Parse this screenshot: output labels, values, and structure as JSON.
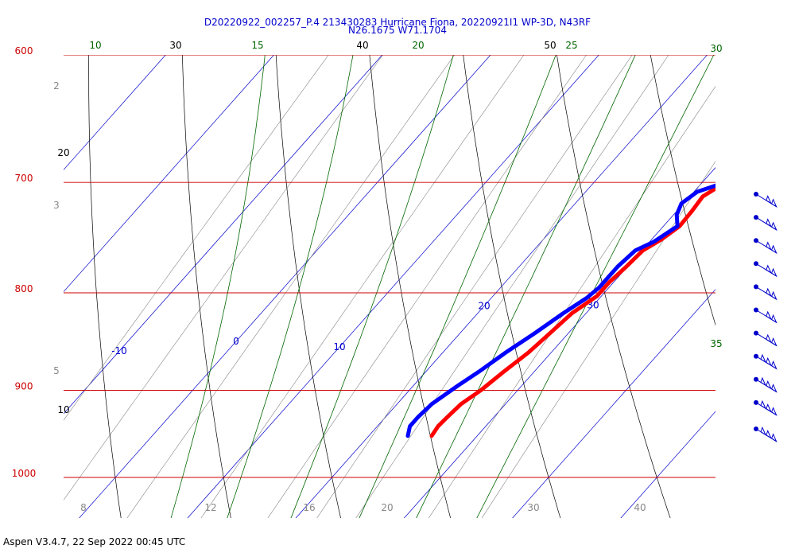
{
  "title_line1": "D20220922_002257_P.4 213430283 Hurricane Fiona, 20220921I1 WP-3D, N43RF",
  "title_line2": "N26.1675 W71.1704",
  "footer": "Aspen V3.4.7, 22 Sep 2022  00:45 UTC",
  "colors": {
    "isobar": "#cc0000",
    "dry_adiabat": "#000000",
    "moist_adiabat": "#006600",
    "isotherm": "#0000cc",
    "mixing_ratio": "#888888",
    "temperature": "#ff0000",
    "dewpoint": "#0000ff",
    "wind": "#0000cc"
  },
  "chart_data": {
    "type": "line",
    "chart_kind": "skew-T log-P sounding",
    "pressure_axis": {
      "label_values": [
        "600",
        "700",
        "800",
        "900",
        "1000"
      ],
      "range_hPa": [
        600,
        1025
      ],
      "scale": "log"
    },
    "isotherm_labels": [
      "-10",
      "0",
      "10",
      "20",
      "30"
    ],
    "dry_adiabat_labels": [
      "10",
      "20",
      "30",
      "40",
      "50"
    ],
    "moist_adiabat_labels": [
      "10",
      "15",
      "20",
      "25",
      "30",
      "35"
    ],
    "mixing_ratio_labels": [
      "2",
      "3",
      "5",
      "8",
      "12",
      "16",
      "20",
      "30",
      "40"
    ],
    "series": [
      {
        "key": "temperature",
        "points_T_C_vs_P_hPa": [
          [
            951,
            25.8
          ],
          [
            940,
            25.6
          ],
          [
            930,
            25.7
          ],
          [
            915,
            25.9
          ],
          [
            900,
            26.6
          ],
          [
            880,
            27.2
          ],
          [
            860,
            27.9
          ],
          [
            840,
            28.3
          ],
          [
            820,
            28.7
          ],
          [
            803,
            29.6
          ],
          [
            790,
            29.6
          ],
          [
            775,
            29.9
          ],
          [
            760,
            30.1
          ],
          [
            750,
            30.9
          ],
          [
            738,
            31.5
          ],
          [
            725,
            31.4
          ],
          [
            712,
            31.2
          ],
          [
            703,
            31.9
          ]
        ]
      },
      {
        "key": "dewpoint",
        "points_T_C_vs_P_hPa": [
          [
            951,
            23.6
          ],
          [
            940,
            23.0
          ],
          [
            930,
            23.0
          ],
          [
            915,
            23.2
          ],
          [
            895,
            24.1
          ],
          [
            880,
            24.9
          ],
          [
            860,
            25.8
          ],
          [
            840,
            26.9
          ],
          [
            820,
            27.9
          ],
          [
            805,
            28.8
          ],
          [
            795,
            29.1
          ],
          [
            775,
            29.1
          ],
          [
            760,
            29.4
          ],
          [
            752,
            30.4
          ],
          [
            738,
            31.3
          ],
          [
            728,
            30.3
          ],
          [
            718,
            29.8
          ],
          [
            708,
            30.3
          ],
          [
            700,
            32.1
          ]
        ]
      }
    ],
    "wind_barb_count": 11
  }
}
